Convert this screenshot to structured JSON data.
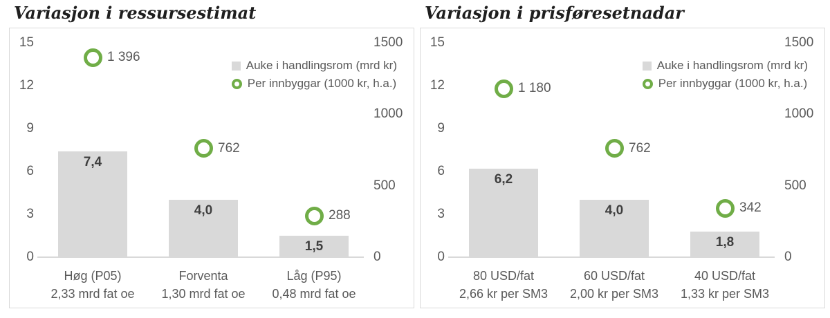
{
  "colors": {
    "bar_fill": "#d9d9d9",
    "circle_ring": "#70ad47",
    "axis_text": "#595959",
    "bar_label_text": "#3f3f3f",
    "title_text": "#1f1f1f",
    "axis_line": "#d9d9d9",
    "panel_border": "#d9d9d9"
  },
  "chart_data": [
    {
      "type": "bar",
      "title": "Variasjon i ressursestimat",
      "categories": [
        "Høg (P05)",
        "Forventa",
        "Låg (P95)"
      ],
      "category_sublabels": [
        "2,33 mrd fat oe",
        "1,30 mrd fat oe",
        "0,48 mrd fat oe"
      ],
      "series": [
        {
          "name": "Auke i handlingsrom (mrd kr)",
          "type": "bar",
          "axis": "left",
          "values": [
            7.4,
            4.0,
            1.5
          ],
          "labels": [
            "7,4",
            "4,0",
            "1,5"
          ]
        },
        {
          "name": "Per innbyggar (1000 kr, h.a.)",
          "type": "scatter",
          "axis": "right",
          "values": [
            1396,
            762,
            288
          ],
          "labels": [
            "1 396",
            "762",
            "288"
          ]
        }
      ],
      "left_axis": {
        "ticks": [
          0,
          3,
          6,
          9,
          12,
          15
        ],
        "min": 0,
        "max": 15
      },
      "right_axis": {
        "ticks": [
          0,
          500,
          1000,
          1500
        ],
        "min": 0,
        "max": 1500
      },
      "grid": false,
      "legend_position": "top-right"
    },
    {
      "type": "bar",
      "title": "Variasjon i prisføresetnadar",
      "categories": [
        "80 USD/fat",
        "60 USD/fat",
        "40 USD/fat"
      ],
      "category_sublabels": [
        "2,66 kr per SM3",
        "2,00 kr per SM3",
        "1,33 kr per SM3"
      ],
      "series": [
        {
          "name": "Auke i handlingsrom (mrd kr)",
          "type": "bar",
          "axis": "left",
          "values": [
            6.2,
            4.0,
            1.8
          ],
          "labels": [
            "6,2",
            "4,0",
            "1,8"
          ]
        },
        {
          "name": "Per innbyggar (1000 kr, h.a.)",
          "type": "scatter",
          "axis": "right",
          "values": [
            1180,
            762,
            342
          ],
          "labels": [
            "1 180",
            "762",
            "342"
          ]
        }
      ],
      "left_axis": {
        "ticks": [
          0,
          3,
          6,
          9,
          12,
          15
        ],
        "min": 0,
        "max": 15
      },
      "right_axis": {
        "ticks": [
          0,
          500,
          1000,
          1500
        ],
        "min": 0,
        "max": 1500
      },
      "grid": false,
      "legend_position": "top-right"
    }
  ]
}
